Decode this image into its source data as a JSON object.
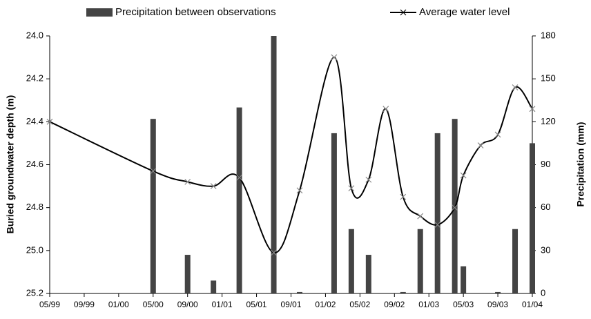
{
  "chart_data": {
    "type": "combo",
    "y_label": "Buried groundwater depth (m)",
    "y2_label": "Precipitation (mm)",
    "x": [
      "05/99",
      "05/00",
      "09/00",
      "12/00",
      "03/01",
      "07/01",
      "10/01",
      "02/02",
      "04/02",
      "06/02",
      "08/02",
      "10/02",
      "12/02",
      "02/03",
      "04/03",
      "05/03",
      "07/03",
      "09/03",
      "11/03",
      "01/04"
    ],
    "xlim": [
      "05/99",
      "01/04"
    ],
    "xticks": [
      "05/99",
      "09/99",
      "01/00",
      "05/00",
      "09/00",
      "01/01",
      "05/01",
      "09/01",
      "01/02",
      "05/02",
      "09/02",
      "01/03",
      "05/03",
      "09/03",
      "01/04"
    ],
    "ylim": [
      24.0,
      25.2
    ],
    "y_inverted": true,
    "yticks": [
      {
        "value": 24.0,
        "label": "24.0"
      },
      24.2,
      24.4,
      24.6,
      24.8,
      {
        "value": 25.0,
        "label": "25.0"
      },
      25.2
    ],
    "y2lim": [
      0,
      180
    ],
    "y2ticks": [
      0,
      30,
      60,
      90,
      120,
      150,
      180
    ],
    "grid": false,
    "series": [
      {
        "name": "Precipitation between observations",
        "type": "bar",
        "axis": "y2",
        "color": "#444444",
        "values": [
          null,
          122,
          27,
          9,
          130,
          180,
          1,
          112,
          45,
          27,
          null,
          1,
          45,
          112,
          122,
          19,
          null,
          1,
          45,
          105
        ]
      },
      {
        "name": "Average water level",
        "type": "line",
        "color": "#000000",
        "values": [
          24.4,
          24.63,
          24.68,
          24.7,
          24.66,
          25.01,
          24.72,
          24.1,
          24.71,
          24.67,
          24.34,
          24.75,
          24.84,
          24.88,
          24.8,
          24.65,
          24.51,
          24.46,
          24.24,
          24.34
        ]
      }
    ]
  }
}
